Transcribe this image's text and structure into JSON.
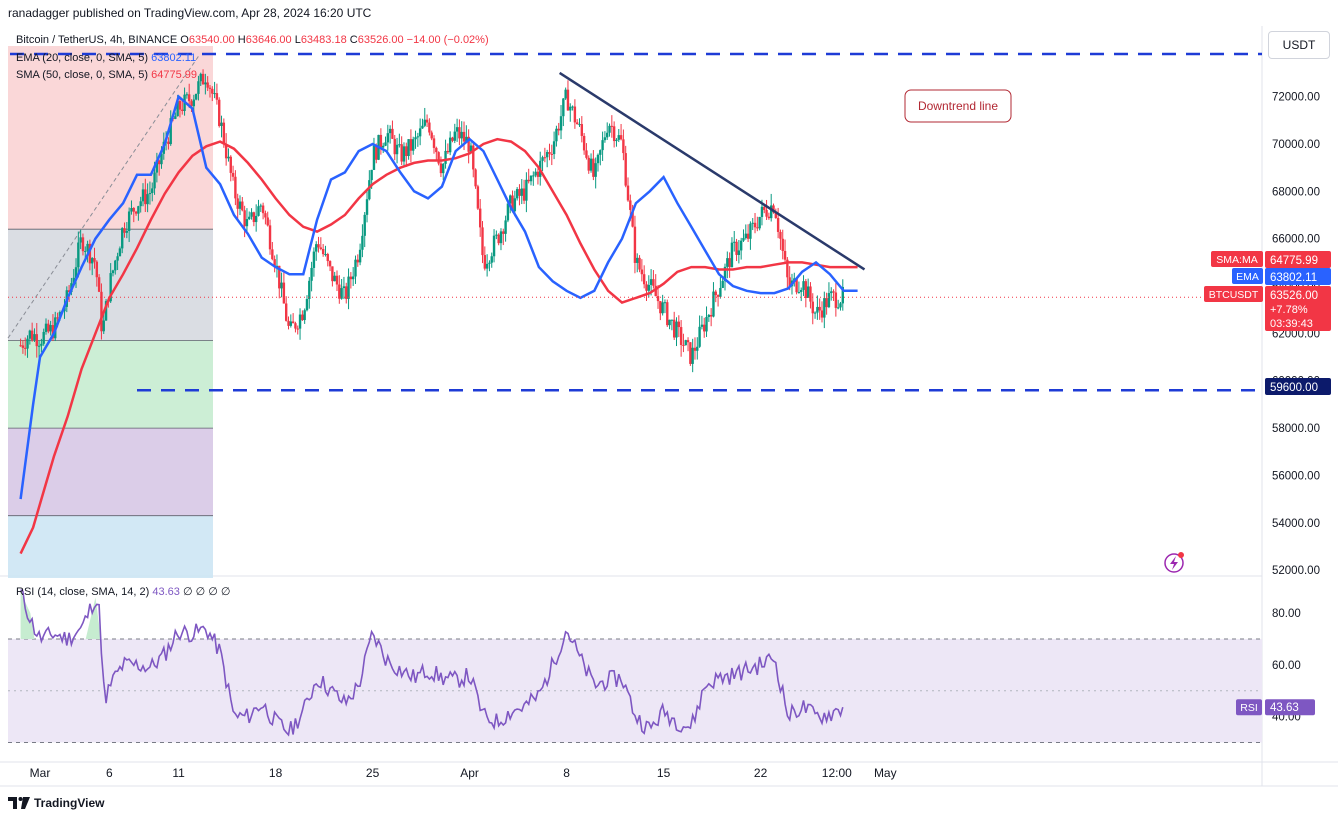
{
  "header": {
    "published": "ranadagger published on TradingView.com, Apr 28, 2024 16:20 UTC"
  },
  "legend": {
    "symbol": "Bitcoin / TetherUS, 4h, BINANCE",
    "o_label": "O",
    "o_value": "63540.00",
    "h_label": "H",
    "h_value": "63646.00",
    "l_label": "L",
    "l_value": "63483.18",
    "c_label": "C",
    "c_value": "63526.00",
    "change": "−14.00 (−0.02%)",
    "ema_label": "EMA (20, close, 0, SMA, 5)",
    "ema_value": "63802.11",
    "sma_label": "SMA (50, close, 0, SMA, 5)",
    "sma_value": "64775.99",
    "rsi_label": "RSI (14, close, SMA, 14, 2)",
    "rsi_value": "43.63",
    "rsi_extra": "∅ ∅ ∅ ∅"
  },
  "currency_button": "USDT",
  "footer": {
    "brand": "TradingView"
  },
  "colors": {
    "up": "#089981",
    "down": "#f23645",
    "ema": "#2962ff",
    "sma": "#f23645",
    "trendline": "#2a3a6b",
    "support": "#1e3bd6",
    "rsi": "#7e57c2",
    "rsi_band": "#ede7f6"
  },
  "chart_data": [
    {
      "type": "candlestick",
      "title": "Bitcoin / TetherUS, 4h, BINANCE",
      "y_axis": {
        "ylim": [
          51500,
          73800
        ],
        "ticks": [
          52000,
          54000,
          56000,
          58000,
          60000,
          62000,
          64000,
          66000,
          68000,
          70000,
          72000
        ],
        "tick_labels": [
          "52000.00",
          "54000.00",
          "56000.00",
          "58000.00",
          "60000.00",
          "62000.00",
          "64000.00",
          "66000.00",
          "68000.00",
          "70000.00",
          "72000.00"
        ]
      },
      "x_axis": {
        "labels": [
          "Mar",
          "6",
          "11",
          "18",
          "25",
          "Apr",
          "8",
          "15",
          "22",
          "12:00",
          "May"
        ],
        "label_day": [
          1,
          6,
          11,
          18,
          25,
          32,
          39,
          46,
          53,
          58.5,
          62
        ]
      },
      "ema_path": [
        [
          -0.4,
          55000
        ],
        [
          0.5,
          59000
        ],
        [
          1,
          61000
        ],
        [
          2,
          62000
        ],
        [
          3,
          63500
        ],
        [
          4,
          64800
        ],
        [
          5,
          66000
        ],
        [
          6,
          66800
        ],
        [
          7,
          67500
        ],
        [
          8,
          68700
        ],
        [
          9,
          68700
        ],
        [
          10,
          70000
        ],
        [
          11,
          72000
        ],
        [
          12,
          71500
        ],
        [
          13,
          69000
        ],
        [
          14,
          68300
        ],
        [
          15,
          67000
        ],
        [
          16,
          66200
        ],
        [
          17,
          65200
        ],
        [
          18,
          64800
        ],
        [
          19,
          64500
        ],
        [
          20,
          64500
        ],
        [
          21,
          66800
        ],
        [
          22,
          68500
        ],
        [
          23,
          68800
        ],
        [
          24,
          69700
        ],
        [
          25,
          70000
        ],
        [
          26,
          69700
        ],
        [
          27,
          68800
        ],
        [
          28,
          68000
        ],
        [
          29,
          67700
        ],
        [
          30,
          68200
        ],
        [
          31,
          69700
        ],
        [
          32,
          70200
        ],
        [
          33,
          69700
        ],
        [
          34,
          68500
        ],
        [
          35,
          67300
        ],
        [
          36,
          66300
        ],
        [
          37,
          64800
        ],
        [
          38,
          64200
        ],
        [
          39,
          63800
        ],
        [
          40,
          63500
        ],
        [
          41,
          63800
        ],
        [
          42,
          65000
        ],
        [
          43,
          66000
        ],
        [
          44,
          67500
        ],
        [
          45,
          68000
        ],
        [
          46,
          68600
        ],
        [
          47,
          67500
        ],
        [
          48,
          66500
        ],
        [
          49,
          65500
        ],
        [
          50,
          64500
        ],
        [
          51,
          64000
        ],
        [
          52,
          63800
        ],
        [
          53,
          63700
        ],
        [
          54,
          63700
        ],
        [
          55,
          63900
        ],
        [
          56,
          64600
        ],
        [
          57,
          65000
        ],
        [
          58,
          64500
        ],
        [
          59,
          63800
        ],
        [
          60,
          63800
        ]
      ],
      "sma_path": [
        [
          -0.4,
          52700
        ],
        [
          0.5,
          53800
        ],
        [
          1,
          54800
        ],
        [
          2,
          56800
        ],
        [
          3,
          58500
        ],
        [
          4,
          60500
        ],
        [
          5,
          62000
        ],
        [
          6,
          63500
        ],
        [
          7,
          64500
        ],
        [
          8,
          65600
        ],
        [
          9,
          66800
        ],
        [
          10,
          67900
        ],
        [
          11,
          68800
        ],
        [
          12,
          69500
        ],
        [
          13,
          69900
        ],
        [
          14,
          70100
        ],
        [
          15,
          69800
        ],
        [
          16,
          69200
        ],
        [
          17,
          68500
        ],
        [
          18,
          67700
        ],
        [
          19,
          67000
        ],
        [
          20,
          66500
        ],
        [
          21,
          66300
        ],
        [
          22,
          66600
        ],
        [
          23,
          67000
        ],
        [
          24,
          67700
        ],
        [
          25,
          68300
        ],
        [
          26,
          68700
        ],
        [
          27,
          69000
        ],
        [
          28,
          69200
        ],
        [
          29,
          69300
        ],
        [
          30,
          69300
        ],
        [
          31,
          69400
        ],
        [
          32,
          69600
        ],
        [
          33,
          70000
        ],
        [
          34,
          70200
        ],
        [
          35,
          70100
        ],
        [
          36,
          69700
        ],
        [
          37,
          69000
        ],
        [
          38,
          68000
        ],
        [
          39,
          67000
        ],
        [
          40,
          65800
        ],
        [
          41,
          64700
        ],
        [
          42,
          63800
        ],
        [
          43,
          63300
        ],
        [
          44,
          63500
        ],
        [
          45,
          63700
        ],
        [
          46,
          64100
        ],
        [
          47,
          64600
        ],
        [
          48,
          64800
        ],
        [
          49,
          64800
        ],
        [
          50,
          64700
        ],
        [
          51,
          64700
        ],
        [
          52,
          64800
        ],
        [
          53,
          64800
        ],
        [
          54,
          64900
        ],
        [
          55,
          65000
        ],
        [
          56,
          65000
        ],
        [
          57,
          64900
        ],
        [
          58,
          64800
        ],
        [
          59,
          64800
        ],
        [
          60,
          64800
        ]
      ],
      "close_path": [
        [
          -0.4,
          61500
        ],
        [
          0.3,
          62000
        ],
        [
          1,
          61800
        ],
        [
          2,
          62200
        ],
        [
          3,
          63500
        ],
        [
          4,
          66000
        ],
        [
          5,
          65000
        ],
        [
          5.5,
          62000
        ],
        [
          6,
          64000
        ],
        [
          7,
          66500
        ],
        [
          8,
          67500
        ],
        [
          9,
          68000
        ],
        [
          10,
          70000
        ],
        [
          11,
          71500
        ],
        [
          12,
          72000
        ],
        [
          13,
          73000
        ],
        [
          14,
          71000
        ],
        [
          15,
          68000
        ],
        [
          16,
          66500
        ],
        [
          17,
          67500
        ],
        [
          18,
          65000
        ],
        [
          19,
          62000
        ],
        [
          20,
          63000
        ],
        [
          21,
          66000
        ],
        [
          22,
          64500
        ],
        [
          23,
          63500
        ],
        [
          24,
          65500
        ],
        [
          25,
          69500
        ],
        [
          26,
          70500
        ],
        [
          27,
          69500
        ],
        [
          28,
          70000
        ],
        [
          29,
          71000
        ],
        [
          30,
          69000
        ],
        [
          31,
          70500
        ],
        [
          32,
          70000
        ],
        [
          33,
          65000
        ],
        [
          34,
          66000
        ],
        [
          35,
          67500
        ],
        [
          36,
          68000
        ],
        [
          37,
          69000
        ],
        [
          38,
          70000
        ],
        [
          39,
          72000
        ],
        [
          40,
          70500
        ],
        [
          41,
          68500
        ],
        [
          42,
          71000
        ],
        [
          43,
          70000
        ],
        [
          44,
          65000
        ],
        [
          45,
          64000
        ],
        [
          46,
          63000
        ],
        [
          47,
          62000
        ],
        [
          48,
          61000
        ],
        [
          49,
          62500
        ],
        [
          50,
          64000
        ],
        [
          51,
          65500
        ],
        [
          52,
          66000
        ],
        [
          53,
          67000
        ],
        [
          54,
          67500
        ],
        [
          55,
          64000
        ],
        [
          56,
          64200
        ],
        [
          57,
          62800
        ],
        [
          58,
          63500
        ],
        [
          59,
          63526
        ]
      ],
      "annotations": [
        {
          "text": "Downtrend line",
          "type": "trendline",
          "from": [
            38.5,
            73000
          ],
          "to": [
            60.5,
            64700
          ]
        },
        {
          "text": "",
          "type": "horizontal",
          "y": 73800,
          "dash": true
        },
        {
          "text": "",
          "type": "horizontal",
          "y": 59600,
          "dash": true
        }
      ],
      "price_tags": [
        {
          "label": "SMA:MA",
          "value": "64775.99",
          "y": 64775.99,
          "color": "#f23645"
        },
        {
          "label": "EMA",
          "value": "63802.11",
          "y": 63802.11,
          "color": "#2962ff"
        },
        {
          "label": "BTCUSDT",
          "value": "63526.00",
          "extra": [
            "+7.78%",
            "03:39:43"
          ],
          "y": 63526,
          "color": "#f23645"
        },
        {
          "label": "",
          "value": "59600.00",
          "y": 59600,
          "color": "#0c1a6b"
        }
      ],
      "position_tool": {
        "entry": 61700,
        "stop": 66400,
        "target_levels": [
          66400,
          61700,
          58000,
          54300,
          51500
        ]
      }
    },
    {
      "type": "line",
      "title": "RSI (14, close, SMA, 14, 2)",
      "ylim": [
        24,
        92
      ],
      "ticks": [
        40,
        60,
        80
      ],
      "tick_labels": [
        "40.00",
        "60.00",
        "80.00"
      ],
      "band": [
        30,
        70
      ],
      "mid": 50,
      "values": [
        [
          -0.4,
          88
        ],
        [
          0.5,
          75
        ],
        [
          1,
          70
        ],
        [
          2,
          72
        ],
        [
          3,
          70
        ],
        [
          4,
          74
        ],
        [
          5,
          86
        ],
        [
          5.3,
          80
        ],
        [
          5.7,
          42
        ],
        [
          6,
          52
        ],
        [
          7,
          60
        ],
        [
          8,
          60
        ],
        [
          9,
          59
        ],
        [
          10,
          64
        ],
        [
          11,
          73
        ],
        [
          12,
          72
        ],
        [
          13,
          74
        ],
        [
          14,
          65
        ],
        [
          15,
          40
        ],
        [
          16,
          40
        ],
        [
          17,
          45
        ],
        [
          18,
          38
        ],
        [
          19,
          34
        ],
        [
          20,
          42
        ],
        [
          21,
          55
        ],
        [
          22,
          50
        ],
        [
          23,
          45
        ],
        [
          24,
          52
        ],
        [
          25,
          72
        ],
        [
          26,
          62
        ],
        [
          27,
          58
        ],
        [
          28,
          55
        ],
        [
          29,
          58
        ],
        [
          30,
          55
        ],
        [
          31,
          54
        ],
        [
          32,
          56
        ],
        [
          33,
          40
        ],
        [
          34,
          38
        ],
        [
          35,
          42
        ],
        [
          36,
          44
        ],
        [
          37,
          48
        ],
        [
          38,
          60
        ],
        [
          39,
          74
        ],
        [
          40,
          62
        ],
        [
          41,
          52
        ],
        [
          42,
          54
        ],
        [
          43,
          55
        ],
        [
          44,
          40
        ],
        [
          45,
          35
        ],
        [
          46,
          42
        ],
        [
          47,
          38
        ],
        [
          48,
          36
        ],
        [
          49,
          52
        ],
        [
          50,
          55
        ],
        [
          51,
          56
        ],
        [
          52,
          58
        ],
        [
          53,
          60
        ],
        [
          54,
          63
        ],
        [
          55,
          40
        ],
        [
          56,
          44
        ],
        [
          57,
          40
        ],
        [
          58,
          41
        ],
        [
          59,
          43.63
        ]
      ],
      "current_label": "RSI",
      "current_value": "43.63"
    }
  ]
}
